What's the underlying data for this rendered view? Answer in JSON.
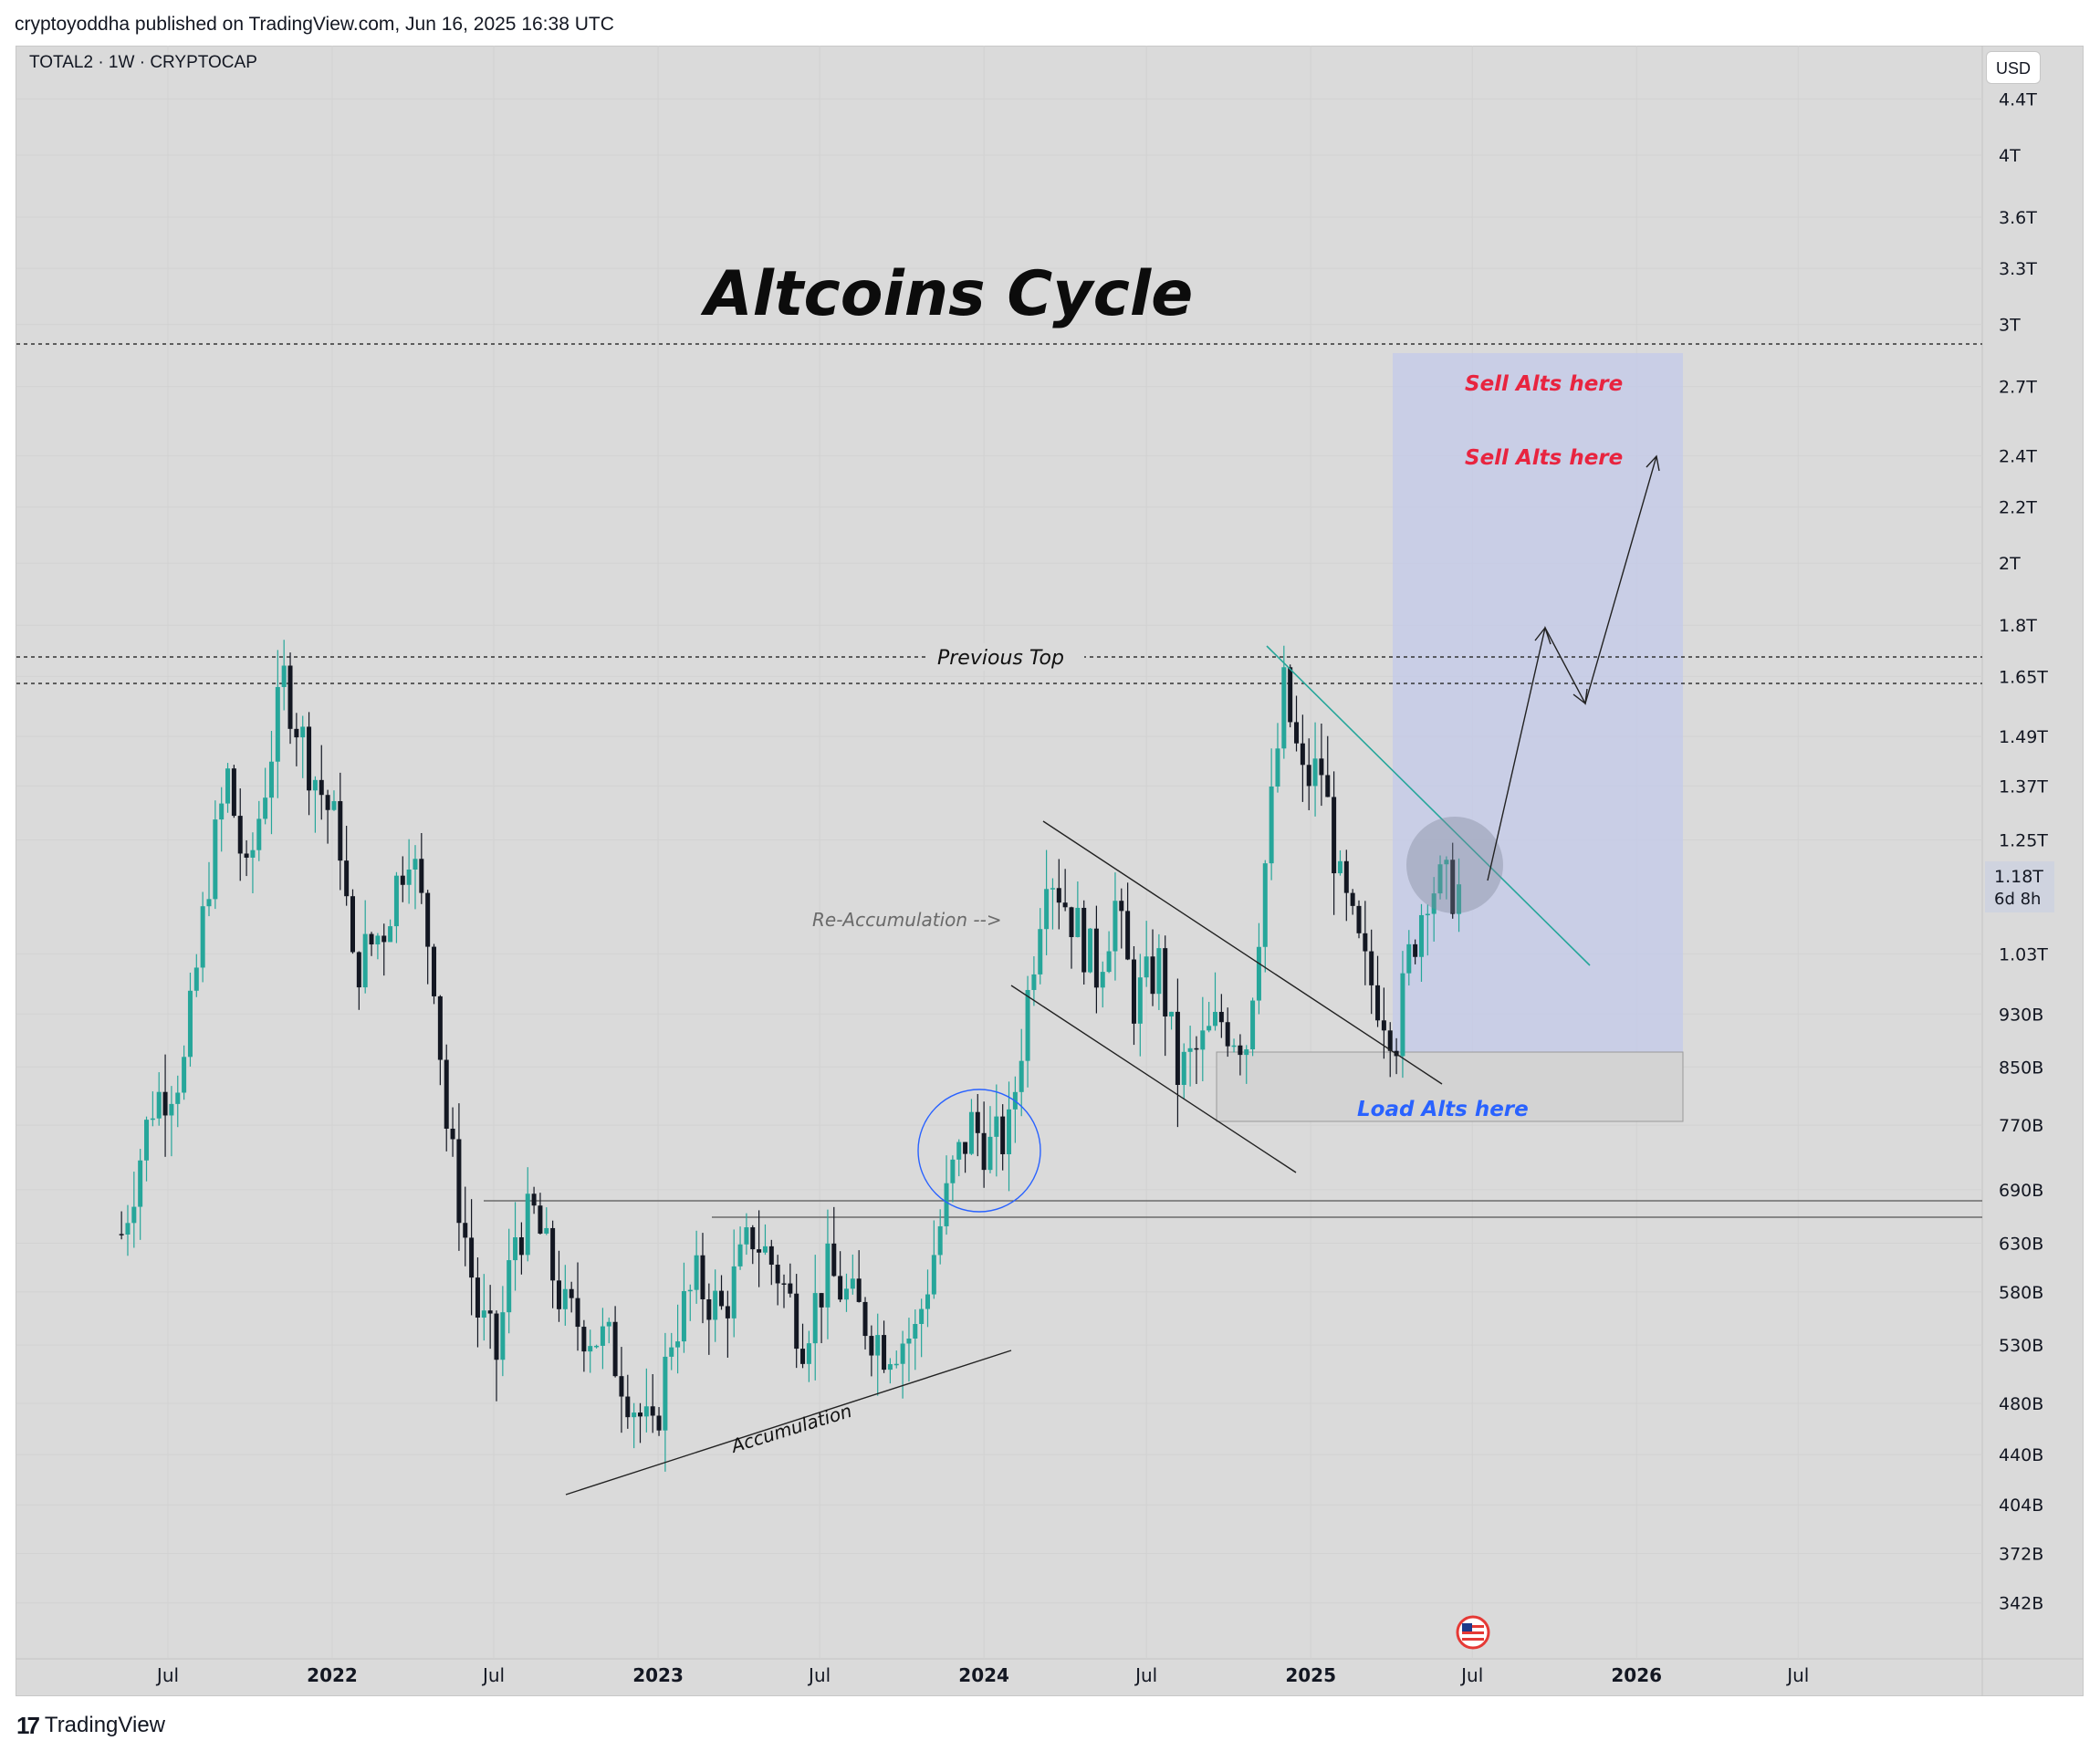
{
  "header": {
    "publisher_line": "cryptoyoddha published on TradingView.com, Jun 16, 2025 16:38 UTC"
  },
  "chart": {
    "symbol_line": "TOTAL2 · 1W · CRYPTOCAP",
    "currency_button": "USD",
    "title": "Altcoins Cycle",
    "price_badge": {
      "value": "1.18T",
      "countdown": "6d 8h"
    },
    "colors": {
      "up": "#26a69a",
      "down": "#131722",
      "background": "#dadada",
      "sell_text": "#e8243f",
      "load_text": "#2962ff",
      "trendline": "#26a69a",
      "sell_zone": "#c3c9ea"
    }
  },
  "chart_data": {
    "type": "candlestick",
    "scale": "log",
    "timeframe": "1W",
    "symbol": "TOTAL2",
    "y_ticks": [
      "4.4T",
      "4T",
      "3.6T",
      "3.3T",
      "3T",
      "2.7T",
      "2.4T",
      "2.2T",
      "2T",
      "1.8T",
      "1.65T",
      "1.49T",
      "1.37T",
      "1.25T",
      "1.18T",
      "1.03T",
      "930B",
      "850B",
      "770B",
      "690B",
      "630B",
      "580B",
      "530B",
      "480B",
      "440B",
      "404B",
      "372B",
      "342B"
    ],
    "x_ticks": [
      "Jul",
      "2022",
      "Jul",
      "2023",
      "Jul",
      "2024",
      "Jul",
      "2025",
      "Jul",
      "2026",
      "Jul"
    ],
    "ylim": [
      320,
      4600
    ],
    "close_path": [
      [
        "2021-05-10",
        640
      ],
      [
        "2021-06-14",
        800
      ],
      [
        "2021-07-19",
        850
      ],
      [
        "2021-08-16",
        1180
      ],
      [
        "2021-09-06",
        1390
      ],
      [
        "2021-09-27",
        1160
      ],
      [
        "2021-11-08",
        1640
      ],
      [
        "2021-12-06",
        1430
      ],
      [
        "2022-01-10",
        1250
      ],
      [
        "2022-01-24",
        1000
      ],
      [
        "2022-02-28",
        1080
      ],
      [
        "2022-03-28",
        1250
      ],
      [
        "2022-04-25",
        1000
      ],
      [
        "2022-05-09",
        770
      ],
      [
        "2022-06-13",
        560
      ],
      [
        "2022-07-04",
        520
      ],
      [
        "2022-07-25",
        640
      ],
      [
        "2022-08-15",
        660
      ],
      [
        "2022-09-19",
        560
      ],
      [
        "2022-11-07",
        530
      ],
      [
        "2022-12-05",
        480
      ],
      [
        "2022-12-26",
        450
      ],
      [
        "2023-01-16",
        540
      ],
      [
        "2023-02-13",
        590
      ],
      [
        "2023-03-13",
        560
      ],
      [
        "2023-04-17",
        640
      ],
      [
        "2023-05-15",
        600
      ],
      [
        "2023-06-12",
        540
      ],
      [
        "2023-07-10",
        600
      ],
      [
        "2023-08-14",
        560
      ],
      [
        "2023-09-11",
        530
      ],
      [
        "2023-10-16",
        540
      ],
      [
        "2023-11-06",
        620
      ],
      [
        "2023-11-27",
        710
      ],
      [
        "2023-12-18",
        770
      ],
      [
        "2024-01-08",
        740
      ],
      [
        "2024-01-29",
        760
      ],
      [
        "2024-02-19",
        960
      ],
      [
        "2024-03-11",
        1210
      ],
      [
        "2024-04-08",
        1100
      ],
      [
        "2024-05-06",
        1000
      ],
      [
        "2024-05-27",
        1120
      ],
      [
        "2024-06-17",
        950
      ],
      [
        "2024-07-15",
        1010
      ],
      [
        "2024-08-05",
        840
      ],
      [
        "2024-08-26",
        870
      ],
      [
        "2024-09-23",
        920
      ],
      [
        "2024-10-21",
        890
      ],
      [
        "2024-11-11",
        1200
      ],
      [
        "2024-12-02",
        1610
      ],
      [
        "2024-12-23",
        1380
      ],
      [
        "2025-01-13",
        1410
      ],
      [
        "2025-02-03",
        1150
      ],
      [
        "2025-03-03",
        1000
      ],
      [
        "2025-04-07",
        900
      ],
      [
        "2025-04-21",
        1020
      ],
      [
        "2025-05-12",
        1160
      ],
      [
        "2025-06-16",
        1150
      ]
    ],
    "horizontal_lines": [
      {
        "label": "",
        "value": 2900,
        "style": "dashed"
      },
      {
        "label": "Previous Top",
        "value": 1700,
        "style": "dashed"
      },
      {
        "label": "",
        "value": 1630,
        "style": "dashed"
      },
      {
        "label": "",
        "value": 685,
        "style": "solid"
      },
      {
        "label": "",
        "value": 662,
        "style": "solid"
      }
    ],
    "zones": [
      {
        "label": "Sell Alts here",
        "from": "2025-03-03",
        "to": "2025-11-24",
        "low": 850,
        "high": 2900
      },
      {
        "label": "Load Alts here",
        "from": "2024-08-19",
        "to": "2025-11-24",
        "low": 780,
        "high": 865
      }
    ],
    "annotations": [
      "Altcoins Cycle",
      "Previous Top",
      "Re-Accumulation -->",
      "Accumulation",
      "Sell Alts here",
      "Sell Alts here",
      "Load Alts here"
    ]
  },
  "annotations": {
    "previous_top": "Previous Top",
    "reaccumulation": "Re-Accumulation -->",
    "accumulation": "Accumulation",
    "sell1": "Sell Alts here",
    "sell2": "Sell Alts here",
    "load": "Load Alts here"
  },
  "footer": {
    "logo_text": "TradingView",
    "logo_mark": "17"
  }
}
